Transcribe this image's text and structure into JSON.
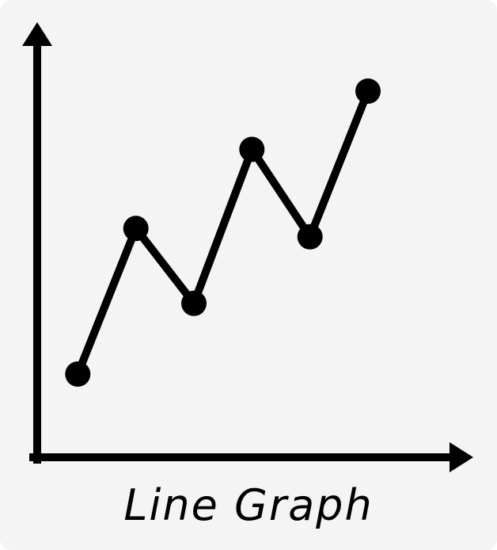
{
  "chart_data": {
    "type": "line",
    "title": "Line Graph",
    "xlabel": "",
    "ylabel": "",
    "x": [
      1,
      2,
      3,
      4,
      5,
      6
    ],
    "values": [
      2,
      5.5,
      3.7,
      7.4,
      5.3,
      8.8
    ],
    "xlim": [
      0.3,
      7.5
    ],
    "ylim": [
      0,
      10
    ],
    "grid": false,
    "axis_ticks": false,
    "line_color": "#000000",
    "background_color": "#f4f4f4"
  }
}
